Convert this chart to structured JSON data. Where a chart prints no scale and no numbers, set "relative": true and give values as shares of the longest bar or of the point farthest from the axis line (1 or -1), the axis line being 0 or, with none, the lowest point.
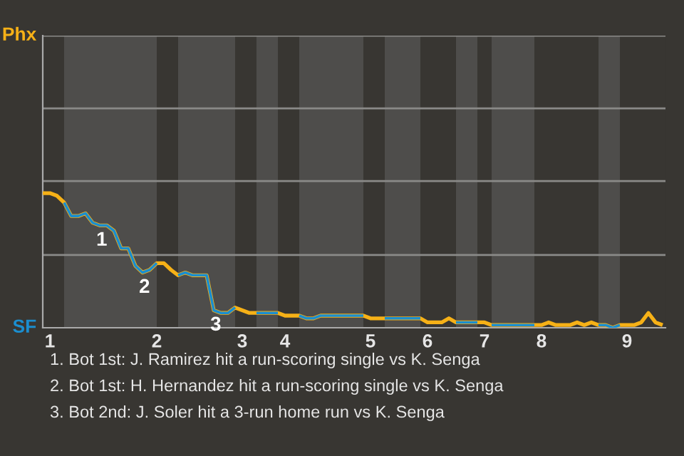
{
  "chart_data": {
    "type": "line",
    "relative": true,
    "categories": [
      null,
      "1",
      null,
      null,
      null,
      null,
      null,
      null,
      null,
      null,
      null,
      null,
      null,
      null,
      null,
      null,
      "2",
      null,
      null,
      null,
      null,
      null,
      null,
      null,
      null,
      null,
      null,
      null,
      "3",
      null,
      null,
      null,
      null,
      null,
      "4",
      null,
      null,
      null,
      null,
      null,
      null,
      null,
      null,
      null,
      null,
      null,
      "5",
      null,
      null,
      null,
      null,
      null,
      null,
      null,
      "6",
      null,
      null,
      null,
      null,
      null,
      null,
      null,
      "7",
      null,
      null,
      null,
      null,
      null,
      null,
      null,
      "8",
      null,
      null,
      null,
      null,
      null,
      null,
      null,
      null,
      null,
      null,
      null,
      "9",
      null,
      null,
      null,
      null,
      null
    ],
    "legend": false,
    "marker": "none",
    "line_style": "solid",
    "ref_lines": [
      {
        "axis": "y",
        "value": 0.54,
        "color": "#8a8a88"
      },
      {
        "axis": "y",
        "value": 1.09,
        "color": "#8a8a88"
      },
      {
        "axis": "y",
        "value": 1.63,
        "color": "#8a8a88"
      },
      {
        "axis": "y",
        "value": 2.17,
        "color": "#8a8a88"
      }
    ],
    "series": [
      {
        "color": "#f6b117",
        "values": [
          1,
          1,
          0.98,
          0.93,
          0.83,
          0.83,
          0.85,
          0.78,
          0.76,
          0.76,
          0.72,
          0.59,
          0.59,
          0.46,
          0.41,
          0.43,
          0.48,
          0.48,
          0.43,
          0.39,
          0.41,
          0.39,
          0.39,
          0.39,
          0.13,
          0.11,
          0.11,
          0.15,
          0.13,
          0.11,
          0.11,
          0.11,
          0.11,
          0.11,
          0.09,
          0.09,
          0.09,
          0.07,
          0.07,
          0.09,
          0.09,
          0.09,
          0.09,
          0.09,
          0.09,
          0.09,
          0.07,
          0.07,
          0.07,
          0.07,
          0.07,
          0.07,
          0.07,
          0.07,
          0.04,
          0.04,
          0.04,
          0.07,
          0.04,
          0.04,
          0.04,
          0.04,
          0.04,
          0.02,
          0.02,
          0.02,
          0.02,
          0.02,
          0.02,
          0.02,
          0.02,
          0.04,
          0.02,
          0.02,
          0.02,
          0.04,
          0.02,
          0.04,
          0.02,
          0.02,
          0,
          0.02,
          0.02,
          0.02,
          0.04,
          0.11,
          0.04,
          0.02
        ]
      },
      {
        "color": "#1b8ecf",
        "values": [
          null,
          null,
          null,
          0.93,
          0.83,
          0.83,
          0.85,
          0.78,
          0.76,
          0.76,
          0.72,
          0.59,
          0.59,
          0.46,
          0.41,
          0.43,
          0.48,
          null,
          null,
          0.39,
          0.41,
          0.39,
          0.39,
          0.39,
          0.13,
          0.11,
          0.11,
          0.15,
          null,
          null,
          0.11,
          0.11,
          0.11,
          0.11,
          null,
          null,
          0.09,
          0.07,
          0.07,
          0.09,
          0.09,
          0.09,
          0.09,
          0.09,
          0.09,
          0.09,
          null,
          null,
          0.07,
          0.07,
          0.07,
          0.07,
          0.07,
          0.07,
          null,
          null,
          null,
          null,
          0.04,
          0.04,
          0.04,
          0.04,
          null,
          0.02,
          0.02,
          0.02,
          0.02,
          0.02,
          0.02,
          0.02,
          null,
          null,
          null,
          null,
          null,
          null,
          null,
          null,
          0.02,
          0.02,
          0,
          0.02,
          null,
          null,
          null,
          null,
          null,
          null
        ]
      }
    ],
    "annotations": [
      "Phx",
      "SF",
      {
        "text": "1",
        "y": 0.76
      },
      {
        "text": "2",
        "y": 0.41
      },
      {
        "text": "3",
        "y": 0.13
      },
      "1. Bot 1st: J. Ramirez hit a run-scoring single vs K. Senga",
      "2. Bot 1st: H. Hernandez hit a run-scoring single vs K. Senga",
      "3. Bot 2nd: J. Soler hit a 3-run home run vs K. Senga"
    ]
  }
}
